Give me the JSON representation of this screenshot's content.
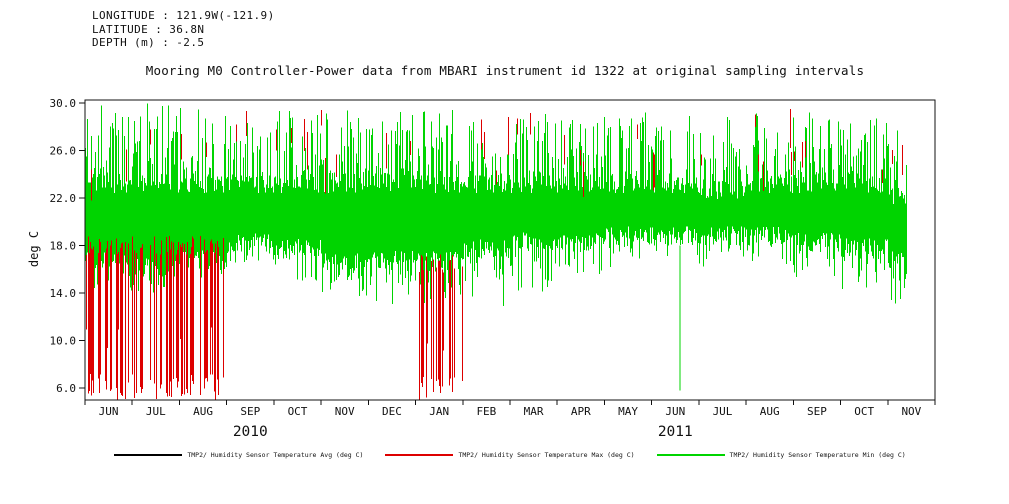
{
  "header": {
    "longitude": "LONGITUDE : 121.9W(-121.9)",
    "latitude": "LATITUDE : 36.8N",
    "depth": "DEPTH (m) : -2.5"
  },
  "chart_data": {
    "type": "line",
    "title": "Mooring M0 Controller-Power data from MBARI instrument id 1322 at original sampling intervals",
    "xlabel": "",
    "ylabel": "deg C",
    "ylim": [
      5.0,
      30.25
    ],
    "grid": false,
    "legend_position": "bottom",
    "ytick_labels": [
      "30.0",
      "26.0",
      "22.0",
      "18.0",
      "14.0",
      "10.0",
      "6.0"
    ],
    "ytick_values": [
      30,
      26,
      22,
      18,
      14,
      10,
      6
    ],
    "x_month_labels": [
      "JUN",
      "JUL",
      "AUG",
      "SEP",
      "OCT",
      "NOV",
      "DEC",
      "JAN",
      "FEB",
      "MAR",
      "APR",
      "MAY",
      "JUN",
      "JUL",
      "AUG",
      "SEP",
      "OCT",
      "NOV"
    ],
    "year_labels": [
      {
        "label": "2010",
        "center_month": 3.5
      },
      {
        "label": "2011",
        "center_month": 12.5
      }
    ],
    "series": [
      {
        "name": "TMP2/ Humidity Sensor Temperature Avg (deg C)",
        "color": "#000000",
        "role": "avg"
      },
      {
        "name": "TMP2/ Humidity Sensor Temperature Max (deg C)",
        "color": "#dd0000",
        "role": "max"
      },
      {
        "name": "TMP2/ Humidity Sensor Temperature Min (deg C)",
        "color": "#00d400",
        "role": "min"
      }
    ],
    "data_start_month": 0.0,
    "data_end_month": 17.38,
    "monthly_envelope": [
      {
        "month": "JUN 2010",
        "band_top": 24.0,
        "band_bottom": 16.0,
        "spike_max": 30.0,
        "spike_min": 13.5,
        "up_prob": 0.55,
        "down_prob": 0.35
      },
      {
        "month": "JUL 2010",
        "band_top": 24.0,
        "band_bottom": 15.5,
        "spike_max": 30.0,
        "spike_min": 14.0,
        "up_prob": 0.55,
        "down_prob": 0.3
      },
      {
        "month": "AUG 2010",
        "band_top": 24.0,
        "band_bottom": 16.0,
        "spike_max": 30.0,
        "spike_min": 15.0,
        "up_prob": 0.5,
        "down_prob": 0.3
      },
      {
        "month": "SEP 2010",
        "band_top": 24.0,
        "band_bottom": 17.5,
        "spike_max": 29.5,
        "spike_min": 16.0,
        "up_prob": 0.4,
        "down_prob": 0.2
      },
      {
        "month": "OCT 2010",
        "band_top": 24.0,
        "band_bottom": 17.0,
        "spike_max": 29.5,
        "spike_min": 15.0,
        "up_prob": 0.45,
        "down_prob": 0.25
      },
      {
        "month": "NOV 2010",
        "band_top": 24.0,
        "band_bottom": 16.0,
        "spike_max": 29.5,
        "spike_min": 13.5,
        "up_prob": 0.5,
        "down_prob": 0.35
      },
      {
        "month": "DEC 2010",
        "band_top": 24.0,
        "band_bottom": 16.0,
        "spike_max": 29.5,
        "spike_min": 13.0,
        "up_prob": 0.5,
        "down_prob": 0.4
      },
      {
        "month": "JAN 2011",
        "band_top": 24.0,
        "band_bottom": 16.0,
        "spike_max": 29.5,
        "spike_min": 13.0,
        "up_prob": 0.5,
        "down_prob": 0.35
      },
      {
        "month": "FEB 2011",
        "band_top": 24.0,
        "band_bottom": 17.0,
        "spike_max": 29.5,
        "spike_min": 12.5,
        "up_prob": 0.45,
        "down_prob": 0.3
      },
      {
        "month": "MAR 2011",
        "band_top": 24.0,
        "band_bottom": 17.5,
        "spike_max": 29.5,
        "spike_min": 14.0,
        "up_prob": 0.45,
        "down_prob": 0.25
      },
      {
        "month": "APR 2011",
        "band_top": 24.0,
        "band_bottom": 17.5,
        "spike_max": 29.5,
        "spike_min": 15.0,
        "up_prob": 0.45,
        "down_prob": 0.25
      },
      {
        "month": "MAY 2011",
        "band_top": 24.0,
        "band_bottom": 18.0,
        "spike_max": 29.5,
        "spike_min": 16.0,
        "up_prob": 0.4,
        "down_prob": 0.2
      },
      {
        "month": "JUN 2011",
        "band_top": 24.0,
        "band_bottom": 18.0,
        "spike_max": 29.5,
        "spike_min": 16.0,
        "up_prob": 0.45,
        "down_prob": 0.2
      },
      {
        "month": "JUL 2011",
        "band_top": 23.5,
        "band_bottom": 18.0,
        "spike_max": 29.0,
        "spike_min": 16.0,
        "up_prob": 0.4,
        "down_prob": 0.2
      },
      {
        "month": "AUG 2011",
        "band_top": 24.0,
        "band_bottom": 18.0,
        "spike_max": 29.5,
        "spike_min": 16.0,
        "up_prob": 0.45,
        "down_prob": 0.2
      },
      {
        "month": "SEP 2011",
        "band_top": 24.0,
        "band_bottom": 17.5,
        "spike_max": 29.5,
        "spike_min": 15.0,
        "up_prob": 0.5,
        "down_prob": 0.25
      },
      {
        "month": "OCT 2011",
        "band_top": 24.0,
        "band_bottom": 17.0,
        "spike_max": 29.5,
        "spike_min": 14.0,
        "up_prob": 0.5,
        "down_prob": 0.3
      },
      {
        "month": "NOV 2011",
        "band_top": 23.0,
        "band_bottom": 16.0,
        "spike_max": 29.0,
        "spike_min": 13.0,
        "up_prob": 0.4,
        "down_prob": 0.3
      }
    ],
    "max_event_clusters": [
      {
        "start_month": 0.0,
        "end_month": 2.95,
        "density": 0.5,
        "top": 18.0,
        "bottom": 5.0
      },
      {
        "start_month": 7.05,
        "end_month": 7.98,
        "density": 0.45,
        "top": 16.5,
        "bottom": 5.0
      }
    ],
    "max_tick_scatter": {
      "density": 0.05,
      "value_low": 24.0,
      "value_high": 29.5
    },
    "min_deep_spikes": [
      {
        "month": 12.6,
        "top": 18.0,
        "bottom": 5.8
      }
    ],
    "render_seed": 1322
  }
}
